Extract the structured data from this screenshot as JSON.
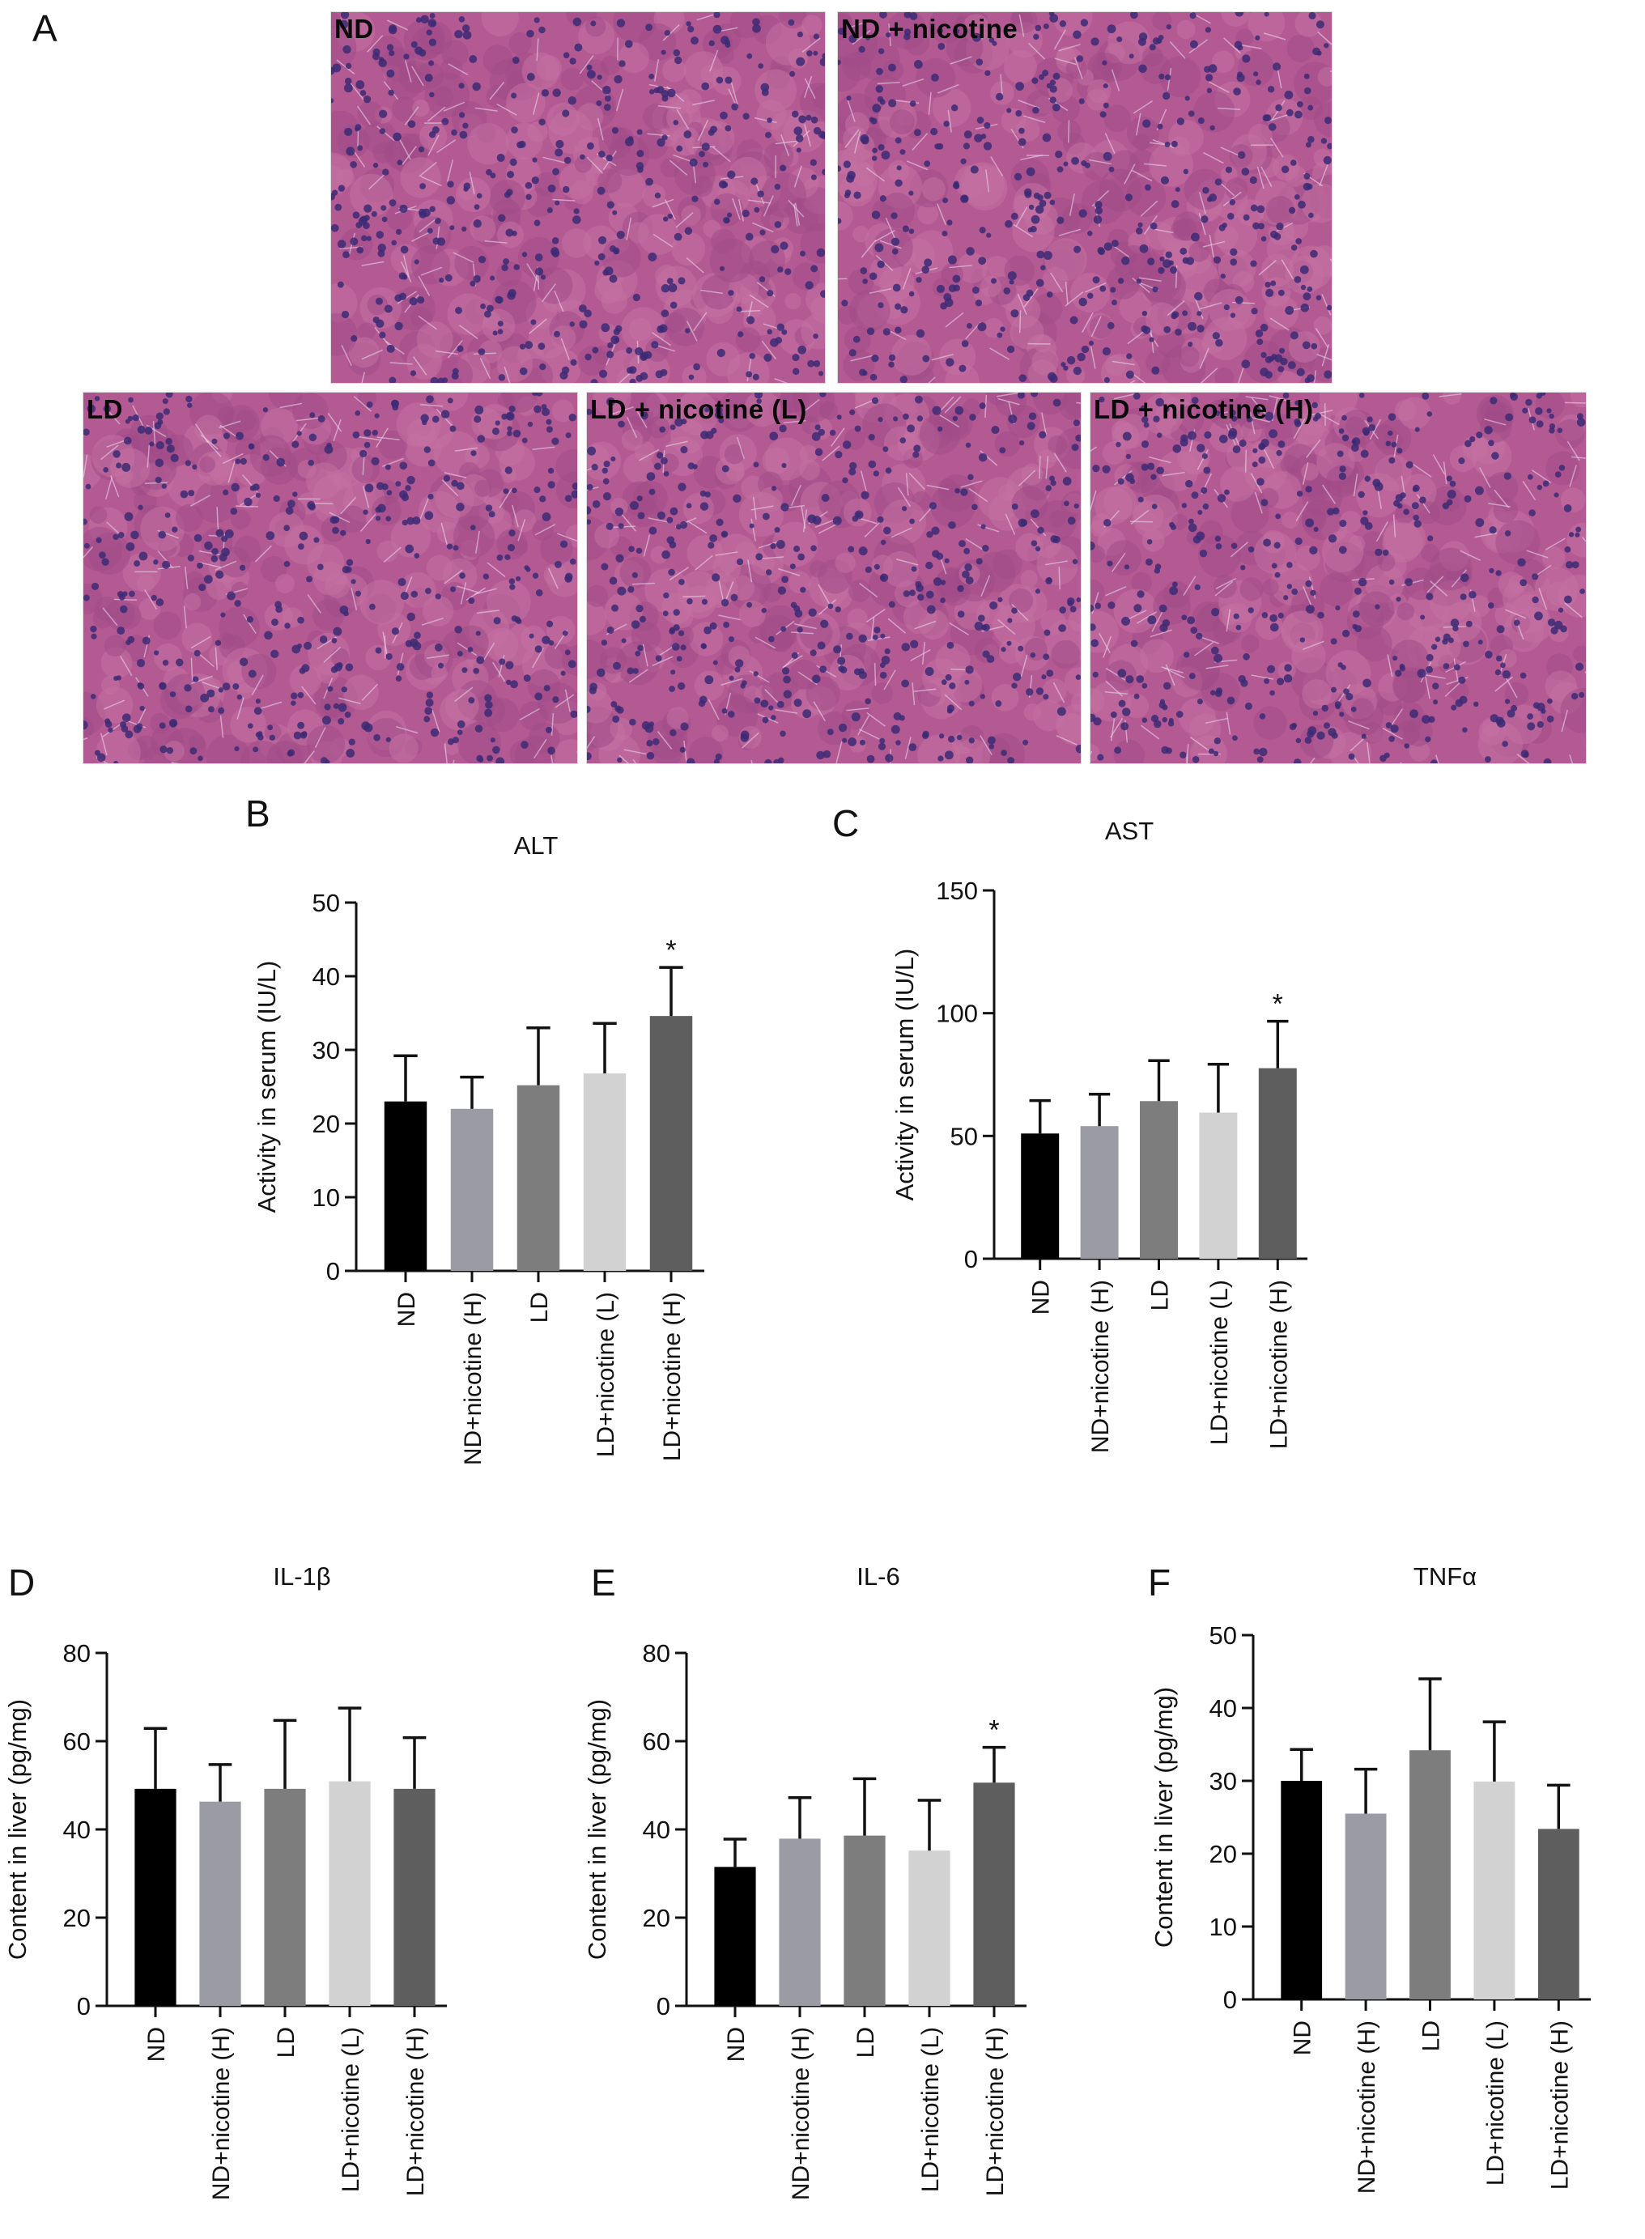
{
  "panel_letters": [
    "A",
    "B",
    "C",
    "D",
    "E",
    "F"
  ],
  "micrographs": [
    {
      "label": "ND"
    },
    {
      "label": "ND + nicotine"
    },
    {
      "label": "LD"
    },
    {
      "label": "LD + nicotine (L)"
    },
    {
      "label": "LD + nicotine (H)"
    }
  ],
  "bar_colors": [
    "#000000",
    "#9b9ba4",
    "#7d7d7d",
    "#d2d2d2",
    "#5e5e5e"
  ],
  "chart_data": [
    {
      "type": "bar",
      "title": "ALT",
      "ylabel": "Activity in serum (IU/L)",
      "categories": [
        "ND",
        "ND+nicotine (H)",
        "LD",
        "LD+nicotine (L)",
        "LD+nicotine (H)"
      ],
      "values": [
        23.0,
        22.0,
        25.2,
        26.8,
        34.6
      ],
      "errors": [
        6.2,
        4.3,
        7.8,
        6.8,
        6.6
      ],
      "significance": [
        "",
        "",
        "",
        "",
        "*"
      ],
      "ylim": [
        0,
        50
      ],
      "yticks": [
        0,
        10,
        20,
        30,
        40,
        50
      ]
    },
    {
      "type": "bar",
      "title": "AST",
      "ylabel": "Activity in serum (IU/L)",
      "categories": [
        "ND",
        "ND+nicotine (H)",
        "LD",
        "LD+nicotine (L)",
        "LD+nicotine (H)"
      ],
      "values": [
        51.0,
        54.0,
        64.2,
        59.5,
        77.6
      ],
      "errors": [
        13.4,
        13.0,
        16.5,
        19.7,
        19.1
      ],
      "significance": [
        "",
        "",
        "",
        "",
        "*"
      ],
      "ylim": [
        0,
        150
      ],
      "yticks": [
        0,
        50,
        100,
        150
      ]
    },
    {
      "type": "bar",
      "title": "IL-1β",
      "ylabel": "Content in liver (pg/mg)",
      "categories": [
        "ND",
        "ND+nicotine (H)",
        "LD",
        "LD+nicotine (L)",
        "LD+nicotine (H)"
      ],
      "values": [
        49.2,
        46.3,
        49.2,
        50.9,
        49.2
      ],
      "errors": [
        13.7,
        8.4,
        15.5,
        16.6,
        11.6
      ],
      "significance": [
        "",
        "",
        "",
        "",
        ""
      ],
      "ylim": [
        0,
        80
      ],
      "yticks": [
        0,
        20,
        40,
        60,
        80
      ]
    },
    {
      "type": "bar",
      "title": "IL-6",
      "ylabel": "Content in liver (pg/mg)",
      "categories": [
        "ND",
        "ND+nicotine (H)",
        "LD",
        "LD+nicotine (L)",
        "LD+nicotine (H)"
      ],
      "values": [
        31.5,
        37.9,
        38.6,
        35.2,
        50.6
      ],
      "errors": [
        6.3,
        9.3,
        12.9,
        11.4,
        8.0
      ],
      "significance": [
        "",
        "",
        "",
        "",
        "*"
      ],
      "ylim": [
        0,
        80
      ],
      "yticks": [
        0,
        20,
        40,
        60,
        80
      ]
    },
    {
      "type": "bar",
      "title": "TNFα",
      "ylabel": "Content in liver (pg/mg)",
      "categories": [
        "ND",
        "ND+nicotine (H)",
        "LD",
        "LD+nicotine (L)",
        "LD+nicotine (H)"
      ],
      "values": [
        30.0,
        25.5,
        34.2,
        29.9,
        23.4
      ],
      "errors": [
        4.3,
        6.1,
        9.8,
        8.2,
        6.0
      ],
      "significance": [
        "",
        "",
        "",
        "",
        ""
      ],
      "ylim": [
        0,
        50
      ],
      "yticks": [
        0,
        10,
        20,
        30,
        40,
        50
      ]
    }
  ]
}
